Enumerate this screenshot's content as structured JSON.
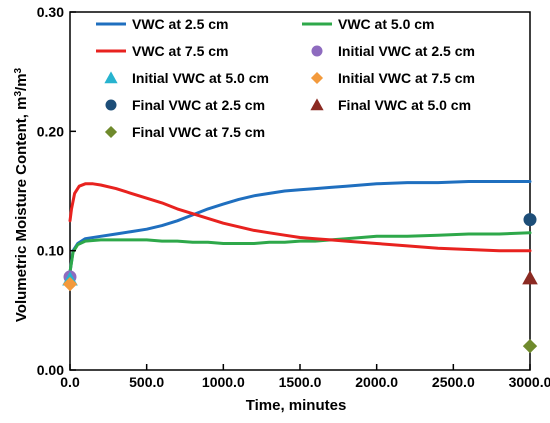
{
  "chart_data": {
    "type": "line",
    "title": "",
    "xlabel": "Time, minutes",
    "ylabel": "Volumetric Moisture Content, m",
    "ylabel_unit_sup": "3",
    "ylabel_unit_tail": "/m",
    "ylabel_unit_sup2": "3",
    "xlim": [
      0,
      3000
    ],
    "ylim": [
      0,
      0.3
    ],
    "x_ticks": [
      {
        "value": 0,
        "label": "0.0"
      },
      {
        "value": 500,
        "label": "500.0"
      },
      {
        "value": 1000,
        "label": "1000.0"
      },
      {
        "value": 1500,
        "label": "1500.0"
      },
      {
        "value": 2000,
        "label": "2000.0"
      },
      {
        "value": 2500,
        "label": "2500.0"
      },
      {
        "value": 3000,
        "label": "3000.0"
      }
    ],
    "y_ticks": [
      {
        "value": 0,
        "label": "0.00"
      },
      {
        "value": 0.1,
        "label": "0.10"
      },
      {
        "value": 0.2,
        "label": "0.20"
      },
      {
        "value": 0.3,
        "label": "0.30"
      }
    ],
    "grid": false,
    "legend_position": "top",
    "series": [
      {
        "name": "VWC at 2.5 cm",
        "kind": "line",
        "color": "#1f6fbf",
        "x": [
          0,
          20,
          50,
          100,
          200,
          300,
          400,
          500,
          600,
          700,
          800,
          900,
          1000,
          1100,
          1200,
          1300,
          1400,
          1500,
          1600,
          1700,
          1800,
          1900,
          2000,
          2200,
          2400,
          2600,
          2800,
          3000
        ],
        "values": [
          0.082,
          0.1,
          0.106,
          0.11,
          0.112,
          0.114,
          0.116,
          0.118,
          0.121,
          0.125,
          0.13,
          0.135,
          0.139,
          0.143,
          0.146,
          0.148,
          0.15,
          0.151,
          0.152,
          0.153,
          0.154,
          0.155,
          0.156,
          0.157,
          0.157,
          0.158,
          0.158,
          0.158
        ]
      },
      {
        "name": "VWC at 5.0 cm",
        "kind": "line",
        "color": "#2ea84a",
        "x": [
          0,
          20,
          50,
          100,
          200,
          300,
          400,
          500,
          600,
          700,
          800,
          900,
          1000,
          1100,
          1200,
          1300,
          1400,
          1500,
          1600,
          1700,
          1800,
          1900,
          2000,
          2200,
          2400,
          2600,
          2800,
          3000
        ],
        "values": [
          0.082,
          0.099,
          0.105,
          0.108,
          0.109,
          0.109,
          0.109,
          0.109,
          0.108,
          0.108,
          0.107,
          0.107,
          0.106,
          0.106,
          0.106,
          0.107,
          0.107,
          0.108,
          0.108,
          0.109,
          0.11,
          0.111,
          0.112,
          0.112,
          0.113,
          0.114,
          0.114,
          0.115
        ]
      },
      {
        "name": "VWC at 7.5 cm",
        "kind": "line",
        "color": "#e8221f",
        "x": [
          0,
          10,
          30,
          60,
          100,
          150,
          200,
          300,
          400,
          500,
          600,
          700,
          800,
          900,
          1000,
          1100,
          1200,
          1300,
          1400,
          1500,
          1600,
          1700,
          1800,
          2000,
          2200,
          2400,
          2600,
          2800,
          3000
        ],
        "values": [
          0.125,
          0.135,
          0.148,
          0.154,
          0.156,
          0.156,
          0.155,
          0.152,
          0.148,
          0.144,
          0.14,
          0.135,
          0.131,
          0.127,
          0.123,
          0.12,
          0.117,
          0.115,
          0.113,
          0.111,
          0.11,
          0.109,
          0.108,
          0.106,
          0.104,
          0.102,
          0.101,
          0.1,
          0.1
        ]
      },
      {
        "name": "Initial VWC at 2.5 cm",
        "kind": "marker",
        "marker": "circle",
        "color": "#8e6bbf",
        "x": [
          0
        ],
        "values": [
          0.078
        ]
      },
      {
        "name": "Initial VWC at 5.0 cm",
        "kind": "marker",
        "marker": "triangle",
        "color": "#27b3cf",
        "x": [
          0
        ],
        "values": [
          0.076
        ]
      },
      {
        "name": "Initial VWC at 7.5 cm",
        "kind": "marker",
        "marker": "diamond",
        "color": "#f39a3c",
        "x": [
          0
        ],
        "values": [
          0.072
        ]
      },
      {
        "name": "Final VWC at 2.5 cm",
        "kind": "marker",
        "marker": "circle",
        "color": "#1d4e78",
        "x": [
          3000
        ],
        "values": [
          0.126
        ]
      },
      {
        "name": "Final VWC at 5.0 cm",
        "kind": "marker",
        "marker": "triangle",
        "color": "#8b2a22",
        "x": [
          3000
        ],
        "values": [
          0.077
        ]
      },
      {
        "name": "Final VWC at 7.5 cm",
        "kind": "marker",
        "marker": "diamond",
        "color": "#6f8a2c",
        "x": [
          3000
        ],
        "values": [
          0.02
        ]
      }
    ]
  }
}
